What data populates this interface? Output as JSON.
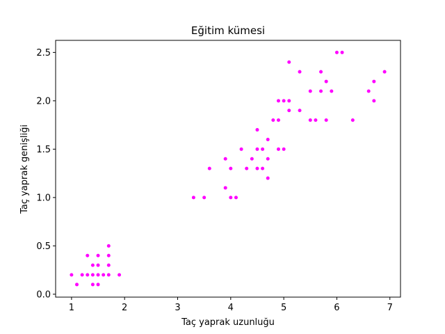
{
  "chart_data": {
    "type": "scatter",
    "title": "Eğitim kümesi",
    "xlabel": "Taç yaprak uzunluğu",
    "ylabel": "Taç yaprak genişliği",
    "xlim": [
      0.7,
      7.2
    ],
    "ylim": [
      -0.03,
      2.625
    ],
    "xticks": [
      1,
      2,
      3,
      4,
      5,
      6,
      7
    ],
    "xtick_labels": [
      "1",
      "2",
      "3",
      "4",
      "5",
      "6",
      "7"
    ],
    "yticks": [
      0.0,
      0.5,
      1.0,
      1.5,
      2.0,
      2.5
    ],
    "ytick_labels": [
      "0.0",
      "0.5",
      "1.0",
      "1.5",
      "2.0",
      "2.5"
    ],
    "grid": false,
    "marker_color": "#ff00ff",
    "series": [
      {
        "points": [
          [
            1.0,
            0.2
          ],
          [
            1.1,
            0.1
          ],
          [
            1.2,
            0.2
          ],
          [
            1.3,
            0.2
          ],
          [
            1.3,
            0.4
          ],
          [
            1.4,
            0.1
          ],
          [
            1.4,
            0.2
          ],
          [
            1.4,
            0.3
          ],
          [
            1.5,
            0.1
          ],
          [
            1.5,
            0.2
          ],
          [
            1.5,
            0.3
          ],
          [
            1.5,
            0.4
          ],
          [
            1.6,
            0.2
          ],
          [
            1.7,
            0.2
          ],
          [
            1.7,
            0.3
          ],
          [
            1.7,
            0.4
          ],
          [
            1.7,
            0.5
          ],
          [
            1.9,
            0.2
          ],
          [
            3.3,
            1.0
          ],
          [
            3.5,
            1.0
          ],
          [
            3.6,
            1.3
          ],
          [
            3.9,
            1.1
          ],
          [
            3.9,
            1.4
          ],
          [
            4.0,
            1.0
          ],
          [
            4.0,
            1.3
          ],
          [
            4.1,
            1.0
          ],
          [
            4.2,
            1.5
          ],
          [
            4.3,
            1.3
          ],
          [
            4.4,
            1.4
          ],
          [
            4.5,
            1.3
          ],
          [
            4.5,
            1.5
          ],
          [
            4.5,
            1.7
          ],
          [
            4.6,
            1.3
          ],
          [
            4.6,
            1.5
          ],
          [
            4.7,
            1.2
          ],
          [
            4.7,
            1.4
          ],
          [
            4.7,
            1.6
          ],
          [
            4.8,
            1.8
          ],
          [
            4.9,
            1.5
          ],
          [
            4.9,
            1.8
          ],
          [
            4.9,
            2.0
          ],
          [
            5.0,
            1.5
          ],
          [
            5.0,
            2.0
          ],
          [
            5.1,
            1.9
          ],
          [
            5.1,
            2.0
          ],
          [
            5.1,
            2.4
          ],
          [
            5.3,
            1.9
          ],
          [
            5.3,
            2.3
          ],
          [
            5.5,
            1.8
          ],
          [
            5.5,
            2.1
          ],
          [
            5.6,
            1.8
          ],
          [
            5.7,
            2.1
          ],
          [
            5.7,
            2.3
          ],
          [
            5.8,
            1.8
          ],
          [
            5.8,
            2.2
          ],
          [
            5.9,
            2.1
          ],
          [
            6.0,
            2.5
          ],
          [
            6.1,
            2.5
          ],
          [
            6.3,
            1.8
          ],
          [
            6.6,
            2.1
          ],
          [
            6.7,
            2.0
          ],
          [
            6.7,
            2.2
          ],
          [
            6.9,
            2.3
          ]
        ]
      }
    ]
  }
}
